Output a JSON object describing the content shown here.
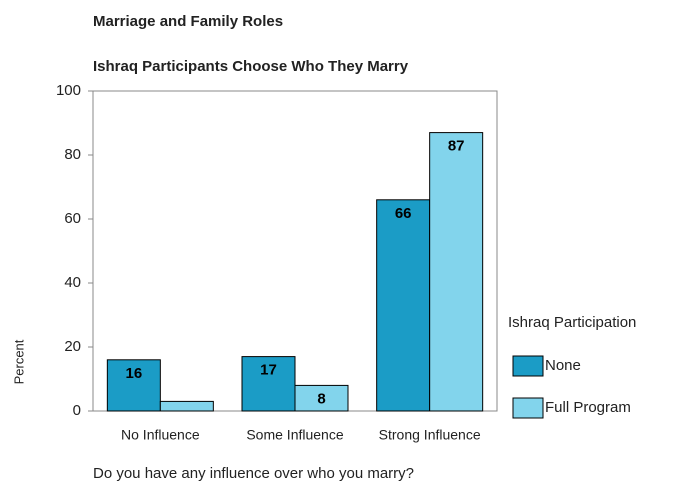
{
  "chart_data": {
    "type": "bar",
    "title": "Marriage and Family Roles",
    "subtitle": "Ishraq Participants Choose Who They Marry",
    "x_label": "Do you have any influence over who you marry?",
    "y_label": "Percent",
    "legend_title": "Ishraq Participation",
    "categories": [
      "No Influence",
      "Some Influence",
      "Strong Influence"
    ],
    "series": [
      {
        "name": "None",
        "color": "#1b9cc6",
        "values": [
          16,
          17,
          66
        ]
      },
      {
        "name": "Full Program",
        "color": "#82d4ec",
        "values": [
          3,
          8,
          87
        ],
        "value_labels": [
          null,
          "8",
          "87"
        ]
      }
    ],
    "ylim": [
      0,
      100
    ],
    "yticks": [
      0,
      20,
      40,
      60,
      80,
      100
    ],
    "grid": false
  }
}
